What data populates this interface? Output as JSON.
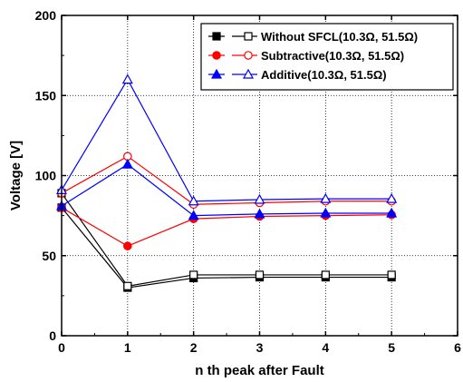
{
  "chart_data": {
    "type": "line",
    "xlabel": "n th peak after Fault",
    "ylabel": "Voltage [V]",
    "xlim": [
      0,
      6
    ],
    "ylim": [
      0,
      200
    ],
    "xticks": [
      "0",
      "1",
      "2",
      "3",
      "4",
      "5",
      "6"
    ],
    "yticks": [
      "0",
      "50",
      "100",
      "150",
      "200"
    ],
    "grid": true,
    "legend_position": "top-right",
    "series": [
      {
        "name": "Without SFCL(10.3Ω, 51.5Ω)",
        "group": "without",
        "color": "#000000",
        "marker": "square",
        "filled": true,
        "x": [
          0,
          1,
          2,
          3,
          4,
          5
        ],
        "y": [
          80,
          30,
          36,
          36.5,
          36.5,
          36.5
        ]
      },
      {
        "name": "",
        "group": "without",
        "color": "#000000",
        "marker": "square",
        "filled": false,
        "x": [
          0,
          1,
          2,
          3,
          4,
          5
        ],
        "y": [
          89,
          31,
          38,
          38,
          38,
          38
        ]
      },
      {
        "name": "Subtractive(10.3Ω, 51.5Ω)",
        "group": "subtractive",
        "color": "#ff0000",
        "marker": "circle",
        "filled": true,
        "x": [
          0,
          1,
          2,
          3,
          4,
          5
        ],
        "y": [
          80,
          56,
          73,
          74.5,
          75,
          75.5
        ]
      },
      {
        "name": "",
        "group": "subtractive",
        "color": "#ff0000",
        "marker": "circle",
        "filled": false,
        "x": [
          0,
          1,
          2,
          3,
          4,
          5
        ],
        "y": [
          89,
          112,
          82,
          83,
          84,
          84
        ]
      },
      {
        "name": "Additive(10.3Ω, 51.5Ω)",
        "group": "additive",
        "color": "#0000ff",
        "marker": "triangle",
        "filled": true,
        "x": [
          0,
          1,
          2,
          3,
          4,
          5
        ],
        "y": [
          81,
          107,
          75,
          76,
          76.5,
          76.5
        ]
      },
      {
        "name": "",
        "group": "additive",
        "color": "#0000ff",
        "marker": "triangle",
        "filled": false,
        "x": [
          0,
          1,
          2,
          3,
          4,
          5
        ],
        "y": [
          91,
          160,
          84,
          85,
          85.5,
          85.5
        ]
      }
    ],
    "legend": [
      {
        "label": "Without SFCL(10.3Ω, 51.5Ω)",
        "color": "#000000",
        "marker": "square"
      },
      {
        "label": "Subtractive(10.3Ω, 51.5Ω)",
        "color": "#ff0000",
        "marker": "circle"
      },
      {
        "label": "Additive(10.3Ω, 51.5Ω)",
        "color": "#0000ff",
        "marker": "triangle"
      }
    ]
  }
}
